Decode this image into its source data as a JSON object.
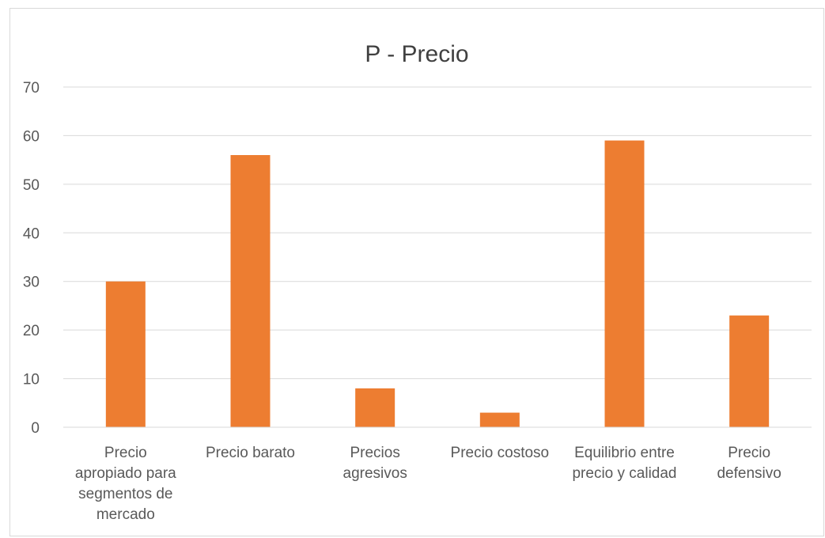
{
  "chart_data": {
    "type": "bar",
    "title": "P - Precio",
    "categories": [
      "Precio apropiado para segmentos de mercado",
      "Precio barato",
      "Precios agresivos",
      "Precio costoso",
      "Equilibrio entre precio y calidad",
      "Precio defensivo"
    ],
    "category_lines": [
      [
        "Precio",
        "apropiado para",
        "segmentos de",
        "mercado"
      ],
      [
        "Precio barato"
      ],
      [
        "Precios",
        "agresivos"
      ],
      [
        "Precio costoso"
      ],
      [
        "Equilibrio entre",
        "precio y calidad"
      ],
      [
        "Precio",
        "defensivo"
      ]
    ],
    "values": [
      30,
      56,
      8,
      3,
      59,
      23
    ],
    "ylim": [
      0,
      70
    ],
    "yticks": [
      0,
      10,
      20,
      30,
      40,
      50,
      60,
      70
    ],
    "grid": true,
    "legend": "none",
    "bar_color": "#ED7D31",
    "xlabel": "",
    "ylabel": ""
  }
}
